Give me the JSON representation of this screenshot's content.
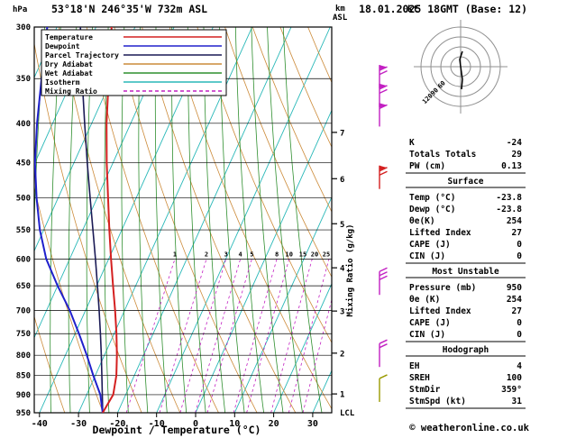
{
  "header": {
    "pressure_unit": "hPa",
    "title": "53°18'N 246°35'W 732m ASL",
    "altitude_unit": "km",
    "altitude_ref": "ASL",
    "datetime": "18.01.2025 18GMT (Base: 12)"
  },
  "legend": {
    "items": [
      {
        "label": "Temperature",
        "color": "#d42020",
        "dash": null
      },
      {
        "label": "Dewpoint",
        "color": "#2020cc",
        "dash": null
      },
      {
        "label": "Parcel Trajectory",
        "color": "#1a1a55",
        "dash": null
      },
      {
        "label": "Dry Adiabat",
        "color": "#cc8b3a",
        "dash": null
      },
      {
        "label": "Wet Adiabat",
        "color": "#2f8f2f",
        "dash": null
      },
      {
        "label": "Isotherm",
        "color": "#28b8b8",
        "dash": null
      },
      {
        "label": "Mixing Ratio",
        "color": "#c220c2",
        "dash": "4,3"
      }
    ]
  },
  "axes": {
    "x_label": "Dewpoint / Temperature (°C)",
    "x_ticks": [
      -40,
      -30,
      -20,
      -10,
      0,
      10,
      20,
      30
    ],
    "pressure_ticks": [
      300,
      350,
      400,
      450,
      500,
      550,
      600,
      650,
      700,
      750,
      800,
      850,
      900,
      950
    ],
    "mixing_ratio_axis_label": "Mixing Ratio (g/kg)",
    "km_ticks": [
      {
        "label": "7",
        "p": 411
      },
      {
        "label": "6",
        "p": 472
      },
      {
        "label": "5",
        "p": 540
      },
      {
        "label": "4",
        "p": 616
      },
      {
        "label": "3",
        "p": 701
      },
      {
        "label": "2",
        "p": 795
      },
      {
        "label": "1",
        "p": 898
      }
    ],
    "lcl_label": "LCL"
  },
  "chart_data": {
    "type": "skewt_log_p",
    "station": "53°18'N 246°35'W 732m ASL",
    "valid": "18.01.2025 18GMT (Base: 12)",
    "pressure_range_hPa": [
      300,
      950
    ],
    "temperature_axis_range_C": [
      -40,
      38
    ],
    "profiles": {
      "pressure_hPa": [
        950,
        900,
        850,
        800,
        750,
        700,
        650,
        600,
        550,
        500,
        450,
        400,
        350,
        300
      ],
      "temperature_C": [
        -23.8,
        -23.2,
        -24.6,
        -26.8,
        -29.4,
        -32.4,
        -35.8,
        -39.4,
        -43.2,
        -47.2,
        -51.6,
        -56.2,
        -60.8,
        -66.0
      ],
      "dewpoint_C": [
        -23.8,
        -26.5,
        -30.5,
        -34.5,
        -39.0,
        -44.0,
        -50.0,
        -56.0,
        -61.0,
        -65.5,
        -70.0,
        -74.0,
        -78.0,
        -82.5
      ],
      "parcel_C": [
        -23.8,
        -26.0,
        -28.3,
        -30.8,
        -33.5,
        -36.5,
        -39.8,
        -43.4,
        -47.4,
        -51.8,
        -56.6,
        -61.8,
        -67.6,
        -74.0
      ]
    },
    "mixing_ratio_lines_g_kg": [
      1,
      2,
      3,
      4,
      5,
      8,
      10,
      15,
      20,
      25
    ]
  },
  "wind_barbs": [
    {
      "p": 348,
      "color": "#c220c2",
      "pennant": true,
      "feathers": 2
    },
    {
      "p": 368,
      "color": "#c220c2",
      "pennant": true,
      "feathers": 2
    },
    {
      "p": 390,
      "color": "#c220c2",
      "pennant": true,
      "feathers": 1
    },
    {
      "p": 470,
      "color": "#d42020",
      "pennant": true,
      "feathers": 2
    },
    {
      "p": 645,
      "color": "#c220c2",
      "pennant": false,
      "feathers": 3
    },
    {
      "p": 800,
      "color": "#c220c2",
      "pennant": false,
      "feathers": 2
    },
    {
      "p": 888,
      "color": "#9a9a00",
      "pennant": false,
      "feathers": 1
    }
  ],
  "hodograph": {
    "unit": "kt",
    "rings_kt": [
      30,
      60,
      90,
      120
    ],
    "ring_labels": [
      {
        "label": "60",
        "r": 22
      },
      {
        "label": "90",
        "r": 33
      },
      {
        "label": "120",
        "r": 44
      }
    ],
    "trace": [
      [
        513,
        57
      ],
      [
        510,
        66
      ],
      [
        511,
        74
      ],
      [
        513,
        88
      ],
      [
        512,
        99
      ]
    ]
  },
  "table": {
    "sections": [
      {
        "header": null,
        "rows": [
          [
            "K",
            "-24"
          ],
          [
            "Totals Totals",
            "29"
          ],
          [
            "PW (cm)",
            "0.13"
          ]
        ]
      },
      {
        "header": "Surface",
        "rows": [
          [
            "Temp (°C)",
            "-23.8"
          ],
          [
            "Dewp (°C)",
            "-23.8"
          ],
          [
            "θe(K)",
            "254"
          ],
          [
            "Lifted Index",
            "27"
          ],
          [
            "CAPE (J)",
            "0"
          ],
          [
            "CIN (J)",
            "0"
          ]
        ]
      },
      {
        "header": "Most Unstable",
        "rows": [
          [
            "Pressure (mb)",
            "950"
          ],
          [
            "θe (K)",
            "254"
          ],
          [
            "Lifted Index",
            "27"
          ],
          [
            "CAPE (J)",
            "0"
          ],
          [
            "CIN (J)",
            "0"
          ]
        ]
      },
      {
        "header": "Hodograph",
        "rows": [
          [
            "EH",
            "4"
          ],
          [
            "SREH",
            "100"
          ],
          [
            "StmDir",
            "359°"
          ],
          [
            "StmSpd (kt)",
            "31"
          ]
        ]
      }
    ]
  },
  "footer": {
    "copyright": "© weatheronline.co.uk"
  }
}
